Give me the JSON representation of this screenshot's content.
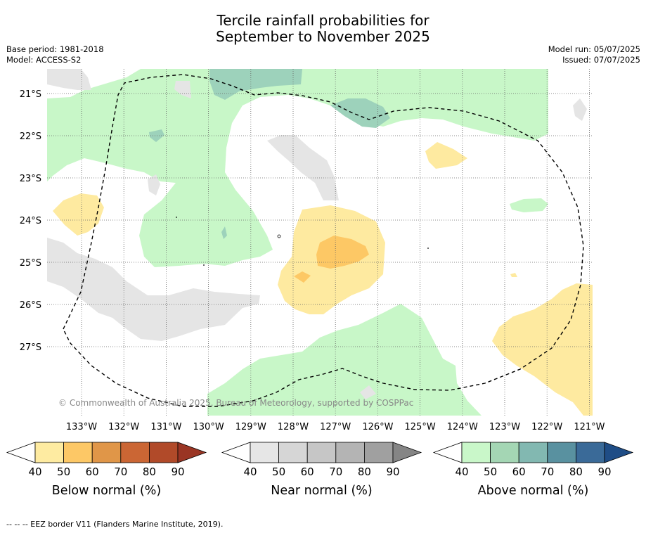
{
  "title_line1": "Tercile rainfall probabilities for",
  "title_line2": "September to November 2025",
  "base_period": "Base period: 1981-2018",
  "model": "Model: ACCESS-S2",
  "model_run": "Model run: 05/07/2025",
  "issued": "Issued: 07/07/2025",
  "map": {
    "lat_labels": [
      "21°S",
      "22°S",
      "23°S",
      "24°S",
      "25°S",
      "26°S",
      "27°S"
    ],
    "lon_labels": [
      "133°W",
      "132°W",
      "131°W",
      "130°W",
      "129°W",
      "128°W",
      "127°W",
      "126°W",
      "125°W",
      "124°W",
      "123°W",
      "122°W",
      "121°W"
    ],
    "copyright": "© Commonwealth of Australia 2025, Bureau of Meteorology, supported by COSPPac",
    "colors": {
      "above_40": "#c8f7c8",
      "above_60": "#9dd2bb",
      "near_40": "#e5e5e5",
      "below_40": "#feeaa0",
      "below_50": "#fdc865",
      "eez_line": "#000000"
    }
  },
  "legends": [
    {
      "label": "Below normal (%)",
      "ticks": [
        "40",
        "50",
        "60",
        "70",
        "80",
        "90"
      ],
      "colors": [
        "#ffffff",
        "#feeba1",
        "#fdc866",
        "#e09648",
        "#cb6634",
        "#b14a29",
        "#9a3524"
      ]
    },
    {
      "label": "Near normal (%)",
      "ticks": [
        "40",
        "50",
        "60",
        "70",
        "80",
        "90"
      ],
      "colors": [
        "#ffffff",
        "#e6e6e6",
        "#d6d6d6",
        "#c6c6c6",
        "#b4b4b4",
        "#a0a0a0",
        "#858585"
      ]
    },
    {
      "label": "Above normal (%)",
      "ticks": [
        "40",
        "50",
        "60",
        "70",
        "80",
        "90"
      ],
      "colors": [
        "#ffffff",
        "#c9f7c9",
        "#a4d6b4",
        "#82b8b1",
        "#5991a0",
        "#3a6a98",
        "#1f4d86"
      ]
    }
  ],
  "footer": "--  --  -- EEZ border V11 (Flanders Marine Institute, 2019)."
}
